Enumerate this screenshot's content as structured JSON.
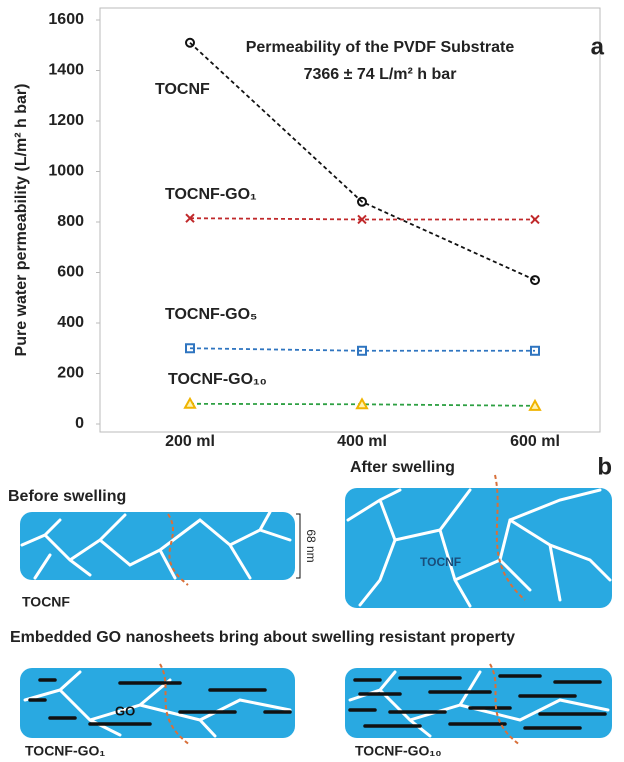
{
  "chart_data": {
    "type": "line",
    "panel_label": "a",
    "y_label": "Pure water permeability (L/m² h bar)",
    "annotation": [
      "Permeability of  the PVDF Substrate",
      "7366 ± 74  L/m² h bar"
    ],
    "categories": [
      "200 ml",
      "400 ml",
      "600 ml"
    ],
    "series": [
      {
        "name": "TOCNF",
        "color": "#111111",
        "marker": "circle",
        "marker_color": "#111111",
        "values": [
          1510,
          880,
          570
        ]
      },
      {
        "name": "TOCNF-GO₁",
        "color": "#c0292b",
        "marker": "x",
        "marker_color": "#c0292b",
        "values": [
          815,
          810,
          810
        ]
      },
      {
        "name": "TOCNF-GO₅",
        "color": "#2f75c0",
        "marker": "square",
        "marker_color": "#2f75c0",
        "values": [
          300,
          290,
          290
        ]
      },
      {
        "name": "TOCNF-GO₁₀",
        "color": "#2ea043",
        "marker": "triangle",
        "marker_color": "#f0b400",
        "values": [
          80,
          78,
          72
        ]
      }
    ],
    "ylim": [
      0,
      1600
    ],
    "yticks": [
      0,
      200,
      400,
      600,
      800,
      1000,
      1200,
      1400,
      1600
    ]
  },
  "diagram": {
    "panel_label": "b",
    "before": "Before swelling",
    "after": "After swelling",
    "thickness": "68 nm",
    "before_label": "TOCNF",
    "after_inner": "TOCNF",
    "heading": "Embedded GO nanosheets bring about swelling resistant property",
    "go_label": "GO",
    "go1_label": "TOCNF-GO₁",
    "go10_label": "TOCNF-GO₁₀"
  }
}
